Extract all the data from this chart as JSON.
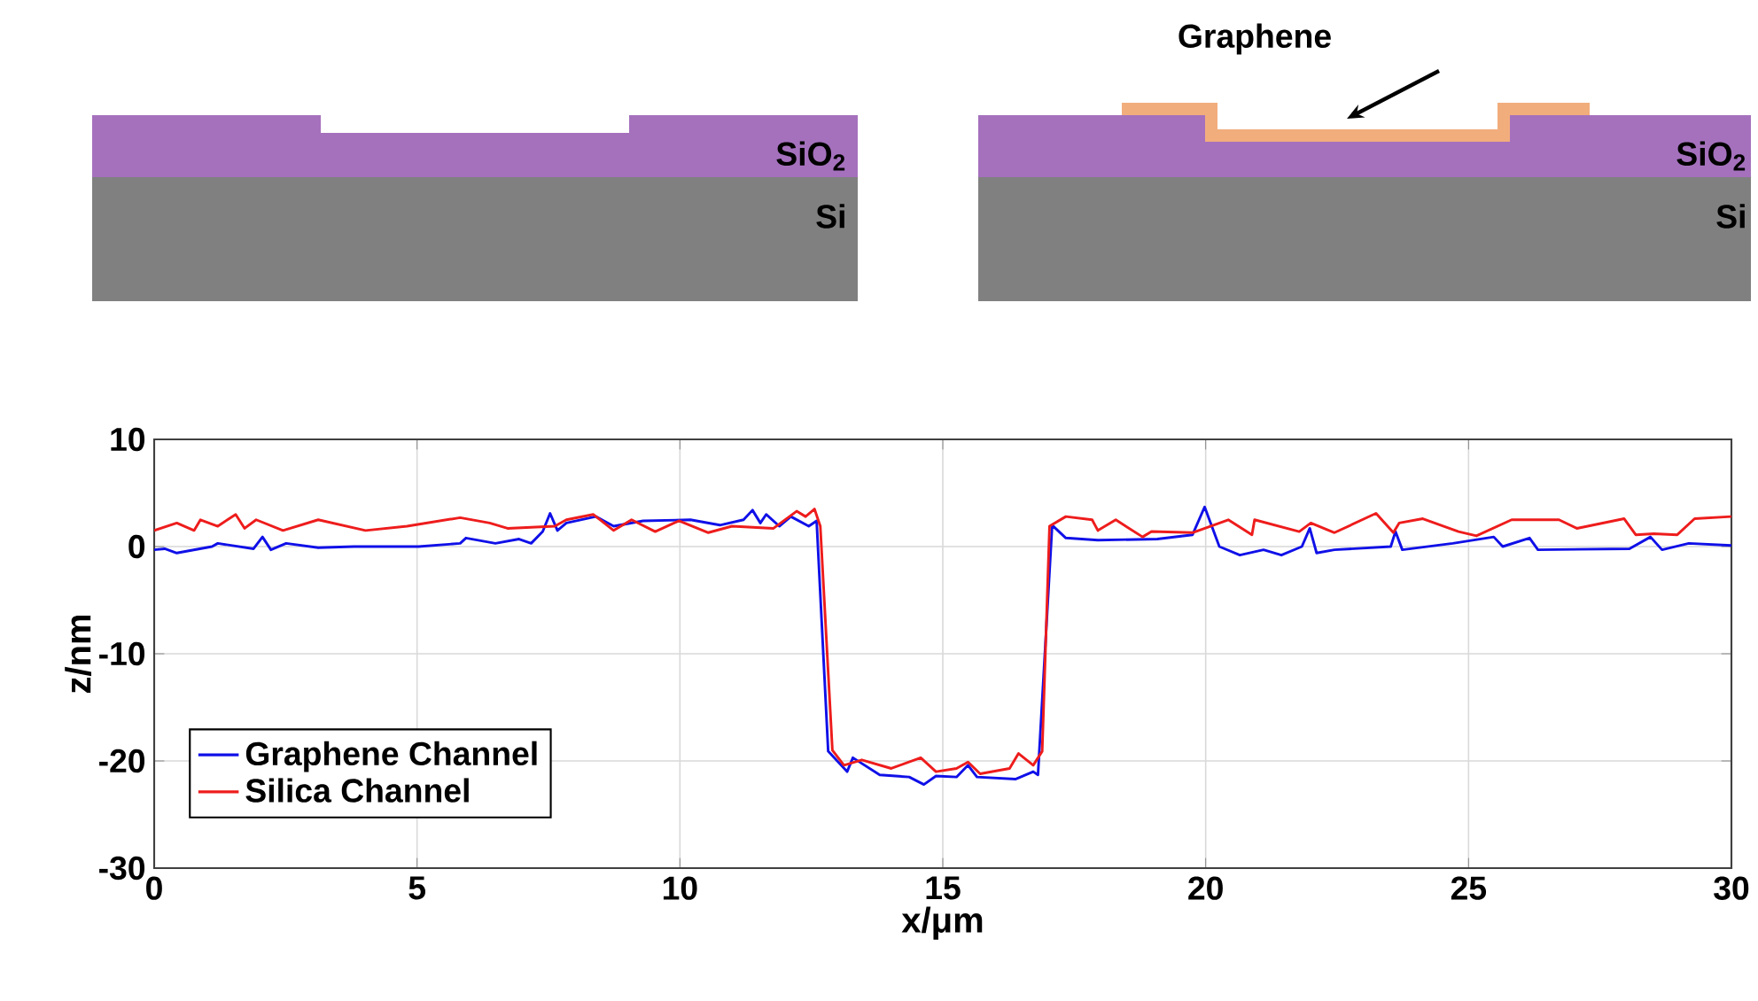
{
  "chart_data": {
    "type": "line",
    "xlabel": "x/μm",
    "ylabel": "z/nm",
    "xlim": [
      0,
      30
    ],
    "ylim": [
      -30,
      10
    ],
    "xticks": [
      0,
      5,
      10,
      15,
      20,
      25,
      30
    ],
    "yticks": [
      -30,
      -20,
      -10,
      0,
      10
    ],
    "grid": true,
    "legend": "bottom left",
    "line_style": "solid",
    "annotations": [
      "SiO$_{2}$",
      "Si",
      "SiO$_{2}$",
      "Si",
      "Graphene"
    ],
    "series": [
      {
        "name": "Graphene Channel",
        "color": "#1010e8",
        "x": [
          0,
          0.2,
          0.43,
          1.1,
          1.21,
          1.89,
          2.06,
          2.22,
          2.51,
          3.12,
          3.8,
          5.03,
          5.82,
          5.93,
          6.49,
          6.94,
          7.17,
          7.39,
          7.53,
          7.67,
          7.84,
          8.4,
          8.74,
          9.3,
          10.2,
          10.76,
          11.21,
          11.38,
          11.53,
          11.64,
          11.89,
          12.11,
          12.45,
          12.6,
          12.82,
          13.18,
          13.29,
          13.8,
          14.36,
          14.64,
          14.87,
          15.26,
          15.48,
          15.65,
          16.38,
          16.72,
          16.81,
          17.08,
          17.34,
          17.95,
          19.08,
          19.75,
          19.98,
          20.26,
          20.65,
          21.1,
          21.44,
          21.83,
          21.98,
          22.11,
          22.45,
          23.52,
          23.61,
          23.74,
          24.7,
          25.48,
          25.65,
          26.16,
          26.32,
          28.06,
          28.46,
          28.68,
          29.19,
          30
        ],
        "values": [
          -0.3,
          -0.2,
          -0.6,
          0,
          0.3,
          -0.2,
          0.9,
          -0.3,
          0.3,
          -0.1,
          0,
          0,
          0.3,
          0.8,
          0.3,
          0.7,
          0.3,
          1.4,
          3.1,
          1.5,
          2.2,
          2.8,
          1.9,
          2.4,
          2.5,
          2.0,
          2.5,
          3.4,
          2.2,
          3.0,
          1.9,
          2.8,
          1.9,
          2.4,
          -19.1,
          -21.0,
          -19.7,
          -21.3,
          -21.5,
          -22.2,
          -21.4,
          -21.5,
          -20.4,
          -21.5,
          -21.7,
          -21.0,
          -21.3,
          2.0,
          0.8,
          0.6,
          0.7,
          1.1,
          3.7,
          0,
          -0.8,
          -0.3,
          -0.8,
          0,
          1.7,
          -0.6,
          -0.3,
          0,
          1.4,
          -0.3,
          0.3,
          0.9,
          0,
          0.8,
          -0.3,
          -0.2,
          0.9,
          -0.3,
          0.3,
          0.1
        ]
      },
      {
        "name": "Silica Channel",
        "color": "#ee1c1c",
        "x": [
          0,
          0.43,
          0.76,
          0.88,
          1.21,
          1.55,
          1.72,
          1.94,
          2.45,
          3.12,
          4.02,
          4.81,
          5.82,
          6.38,
          6.72,
          7.62,
          7.84,
          8.35,
          8.74,
          9.08,
          9.53,
          9.98,
          10.54,
          10.99,
          11.78,
          12.22,
          12.39,
          12.56,
          12.67,
          12.9,
          13.12,
          13.46,
          14.02,
          14.58,
          14.87,
          15.26,
          15.48,
          15.71,
          16.27,
          16.44,
          16.72,
          16.89,
          17.03,
          17.34,
          17.84,
          17.95,
          18.29,
          18.8,
          18.97,
          19.75,
          20.43,
          20.88,
          20.93,
          21.78,
          22.0,
          22.45,
          23.24,
          23.57,
          23.68,
          24.13,
          24.81,
          25.15,
          25.82,
          26.72,
          27.06,
          27.96,
          28.18,
          28.52,
          28.97,
          29.3,
          30
        ],
        "values": [
          1.5,
          2.2,
          1.5,
          2.5,
          1.9,
          3.0,
          1.7,
          2.5,
          1.5,
          2.5,
          1.5,
          1.9,
          2.7,
          2.2,
          1.7,
          1.9,
          2.5,
          3.0,
          1.5,
          2.5,
          1.4,
          2.4,
          1.3,
          1.9,
          1.7,
          3.3,
          2.8,
          3.5,
          1.9,
          -19.0,
          -20.4,
          -19.9,
          -20.7,
          -19.7,
          -21.0,
          -20.7,
          -20.1,
          -21.2,
          -20.7,
          -19.3,
          -20.4,
          -19.1,
          1.9,
          2.8,
          2.5,
          1.5,
          2.5,
          0.9,
          1.4,
          1.3,
          2.5,
          1.1,
          2.5,
          1.4,
          2.2,
          1.3,
          3.1,
          1.3,
          2.2,
          2.6,
          1.4,
          1.0,
          2.5,
          2.5,
          1.7,
          2.6,
          1.1,
          1.2,
          1.1,
          2.6,
          2.8
        ]
      }
    ]
  }
}
